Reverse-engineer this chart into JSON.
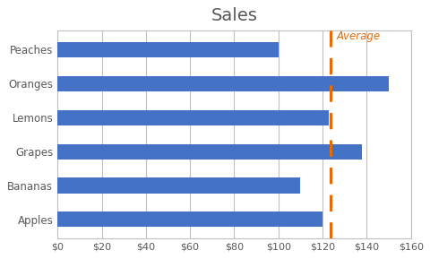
{
  "title": "Sales",
  "categories": [
    "Apples",
    "Bananas",
    "Grapes",
    "Lemons",
    "Oranges",
    "Peaches"
  ],
  "values": [
    120,
    110,
    138,
    123,
    150,
    100
  ],
  "bar_color": "#4472C4",
  "average_value": 123.5,
  "average_label": "Average",
  "average_color": "#E36C09",
  "xlim": [
    0,
    160
  ],
  "xticks": [
    0,
    20,
    40,
    60,
    80,
    100,
    120,
    140,
    160
  ],
  "background_color": "#FFFFFF",
  "grid_color": "#BFBFBF",
  "title_fontsize": 14,
  "bar_height": 0.45,
  "figsize": [
    4.81,
    2.89
  ],
  "dpi": 100
}
